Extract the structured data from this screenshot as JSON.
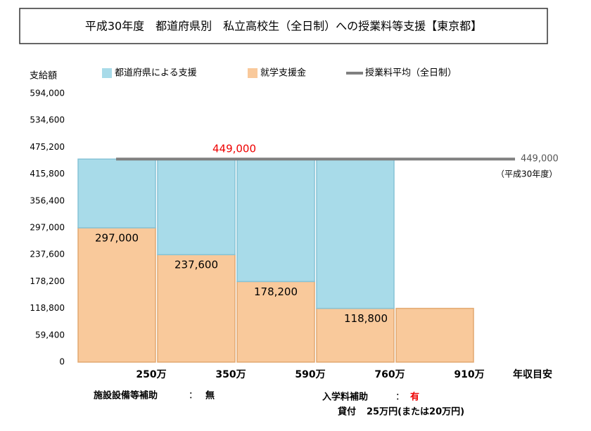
{
  "chart_data": {
    "type": "bar",
    "title": "平成30年度　都道府県別　私立高校生（全日制）への授業料等支援【東京都】",
    "y_label": "支給額",
    "x_label": "年収目安",
    "categories": [
      "250万",
      "350万",
      "590万",
      "760万",
      "910万"
    ],
    "series": [
      {
        "name": "就学支援金",
        "color": "#f9c99b",
        "values": [
          297000,
          237600,
          178200,
          118800,
          118800
        ],
        "value_labels": [
          "297,000",
          "237,600",
          "178,200",
          "118,800",
          null
        ]
      },
      {
        "name": "都道府県による支援",
        "color": "#a8dbe9",
        "values": [
          152000,
          211400,
          270800,
          330200,
          0
        ]
      }
    ],
    "legend_order": [
      1,
      0
    ],
    "reference_line": {
      "name": "授業料平均（全日制）",
      "value": 449000,
      "color": "#808080",
      "center_label": "449,000",
      "end_label": "449,000",
      "note": "（平成30年度）"
    },
    "ylim": [
      0,
      594000
    ],
    "yticks": [
      0,
      {
        "value": 59400,
        "label": "59,400"
      },
      {
        "value": 118800,
        "label": "118,800"
      },
      {
        "value": 178200,
        "label": "178,200"
      },
      {
        "value": 237600,
        "label": "237,600"
      },
      {
        "value": 297000,
        "label": "297,000"
      },
      {
        "value": 356400,
        "label": "356,400"
      },
      {
        "value": 415800,
        "label": "415,800"
      },
      {
        "value": 475200,
        "label": "475,200"
      },
      {
        "value": 534600,
        "label": "534,600"
      },
      {
        "value": 594000,
        "label": "594,000"
      }
    ],
    "grid": false,
    "notes": [
      {
        "label": "施設設備等補助",
        "sep": "：",
        "value": "無"
      },
      {
        "label": "入学料補助",
        "sep": "：",
        "value": "有"
      },
      {
        "label": "貸付",
        "value": "25万円(または20万円)"
      }
    ]
  }
}
